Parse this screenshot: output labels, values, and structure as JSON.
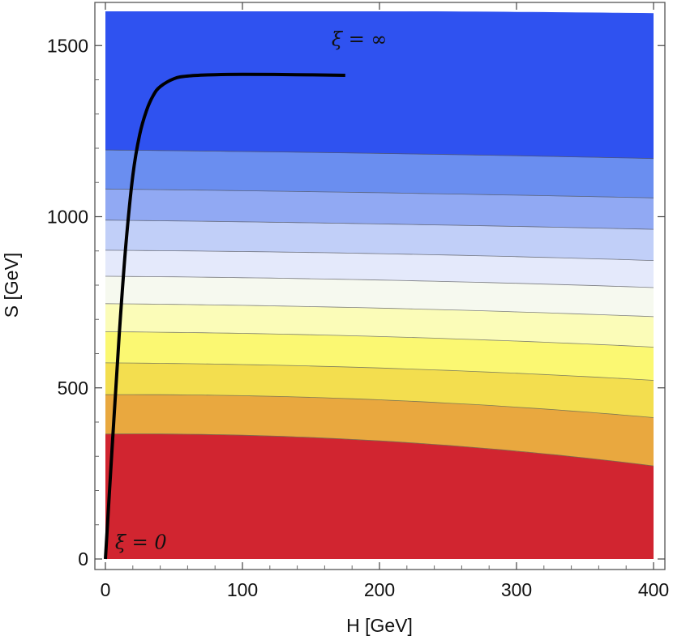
{
  "chart_data": {
    "type": "contour",
    "xlabel": "H  [GeV]",
    "ylabel": "S  [GeV]",
    "xlim": [
      0,
      400
    ],
    "ylim": [
      0,
      1600
    ],
    "xticks": [
      0,
      100,
      200,
      300,
      400
    ],
    "yticks": [
      0,
      500,
      1000,
      1500
    ],
    "grid": false,
    "contour_levels": [
      {
        "color": "#d12530",
        "s_at_h0": 0,
        "s_at_h400": 0
      },
      {
        "color": "#e9a83f",
        "s_at_h0": 365,
        "s_at_h200": 345,
        "s_at_h400": 272
      },
      {
        "color": "#f3de4f",
        "s_at_h0": 480,
        "s_at_h200": 465,
        "s_at_h400": 413
      },
      {
        "color": "#fbf872",
        "s_at_h0": 573,
        "s_at_h200": 558,
        "s_at_h400": 522
      },
      {
        "color": "#fbfcb8",
        "s_at_h0": 664,
        "s_at_h200": 650,
        "s_at_h400": 619
      },
      {
        "color": "#f6f9ef",
        "s_at_h0": 746,
        "s_at_h200": 733,
        "s_at_h400": 708
      },
      {
        "color": "#e4e9fb",
        "s_at_h0": 826,
        "s_at_h200": 815,
        "s_at_h400": 793
      },
      {
        "color": "#c1cff8",
        "s_at_h0": 902,
        "s_at_h200": 892,
        "s_at_h400": 872
      },
      {
        "color": "#91a9f3",
        "s_at_h0": 990,
        "s_at_h200": 979,
        "s_at_h400": 963
      },
      {
        "color": "#6a8ef0",
        "s_at_h0": 1081,
        "s_at_h200": 1070,
        "s_at_h400": 1055
      },
      {
        "color": "#2f52f0",
        "s_at_h0": 1195,
        "s_at_h200": 1185,
        "s_at_h400": 1170
      },
      {
        "color": "#ffffff",
        "s_at_h0": 1600,
        "s_at_h200": 1600,
        "s_at_h400": 1594
      }
    ],
    "curve": {
      "color": "#000000",
      "points": [
        [
          0,
          0
        ],
        [
          5,
          330
        ],
        [
          10,
          650
        ],
        [
          15,
          920
        ],
        [
          20,
          1120
        ],
        [
          25,
          1240
        ],
        [
          30,
          1310
        ],
        [
          35,
          1355
        ],
        [
          40,
          1380
        ],
        [
          50,
          1403
        ],
        [
          60,
          1411
        ],
        [
          80,
          1415
        ],
        [
          100,
          1416
        ],
        [
          140,
          1415
        ],
        [
          175,
          1413
        ]
      ]
    },
    "annotations": [
      {
        "text": "ξ = ∞",
        "x": 165,
        "y": 1500
      },
      {
        "text": "ξ = 0",
        "x": 7,
        "y": 30
      }
    ]
  }
}
